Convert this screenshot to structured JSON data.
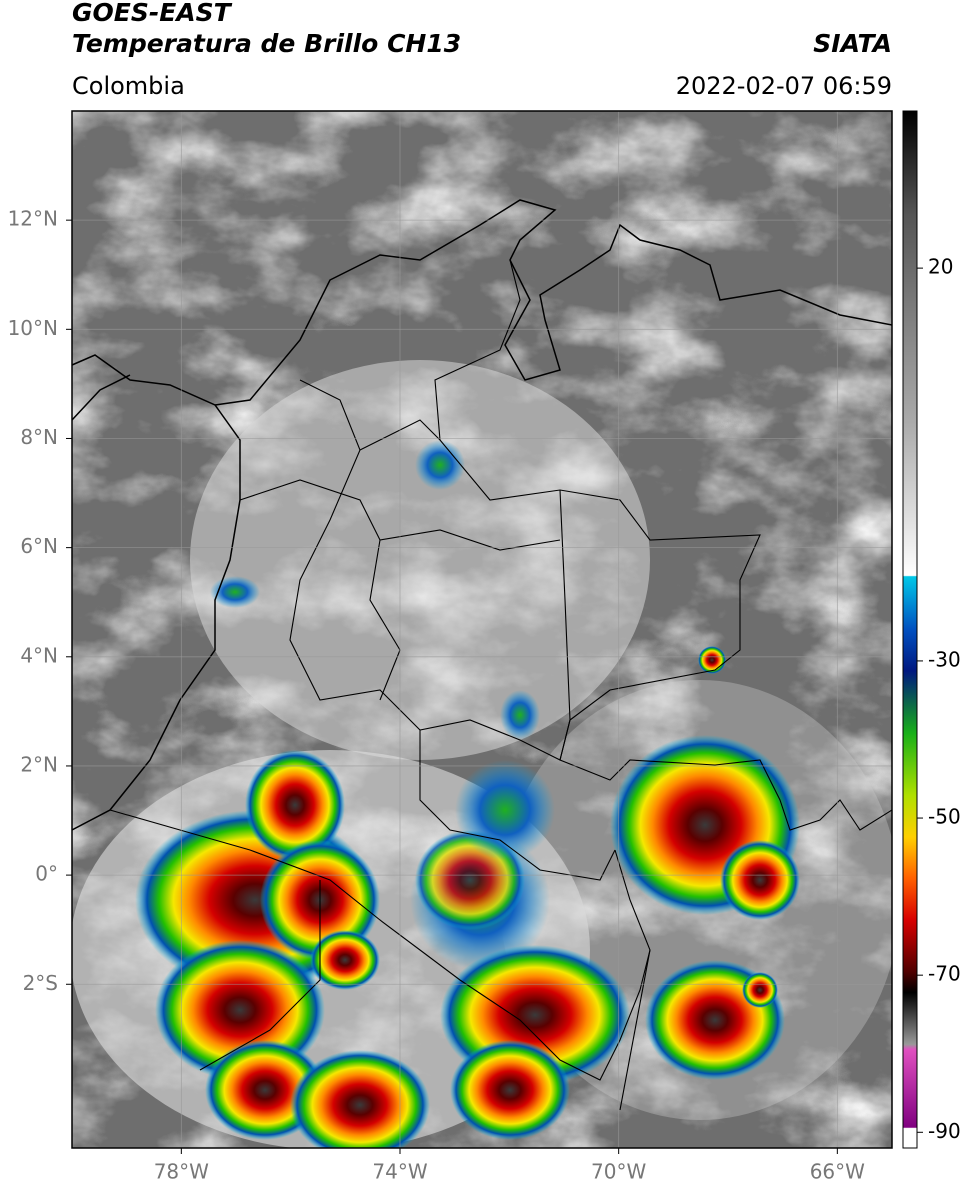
{
  "header": {
    "satellite": "GOES-EAST",
    "product": "Temperatura de Brillo CH13",
    "source": "SIATA",
    "region": "Colombia",
    "datetime": "2022-02-07 06:59"
  },
  "map": {
    "lonlim": [
      -80,
      -65
    ],
    "latlim": [
      -5,
      14
    ],
    "lon_ticks": [
      {
        "value": -78,
        "label": "78°W"
      },
      {
        "value": -74,
        "label": "74°W"
      },
      {
        "value": -70,
        "label": "70°W"
      },
      {
        "value": -66,
        "label": "66°W"
      }
    ],
    "lat_ticks": [
      {
        "value": 12,
        "label": "12°N"
      },
      {
        "value": 10,
        "label": "10°N"
      },
      {
        "value": 8,
        "label": "8°N"
      },
      {
        "value": 6,
        "label": "6°N"
      },
      {
        "value": 4,
        "label": "4°N"
      },
      {
        "value": 2,
        "label": "2°N"
      },
      {
        "value": 0,
        "label": "0°"
      },
      {
        "value": -2,
        "label": "2°S"
      }
    ],
    "grid": true
  },
  "colorbar": {
    "clim": [
      -92,
      40
    ],
    "ticks": [
      20,
      -30,
      -50,
      -70,
      -90
    ]
  }
}
